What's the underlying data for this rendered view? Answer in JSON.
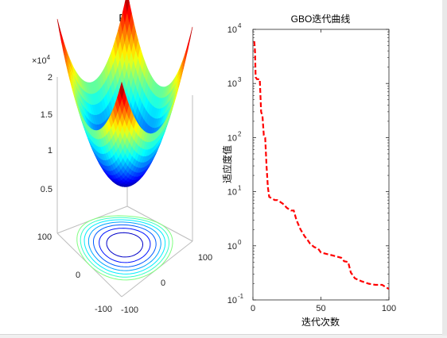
{
  "chart_data": [
    {
      "type": "surface3d",
      "title": "F6",
      "exponent_label": "×10",
      "exponent_power": "4",
      "z_ticks": [
        "0.5",
        "1",
        "1.5",
        "2"
      ],
      "x_ticks": [
        "-100",
        "0",
        "100"
      ],
      "y_ticks": [
        "-100",
        "0",
        "100"
      ],
      "zlim": [
        0,
        20000
      ],
      "xlim": [
        -100,
        100
      ],
      "ylim": [
        -100,
        100
      ],
      "colormap": "jet",
      "contour_projection": true
    },
    {
      "type": "line",
      "title": "GBO迭代曲线",
      "xlabel": "迭代次数",
      "ylabel": "适应度值",
      "xlim": [
        0,
        100
      ],
      "ylim": [
        0.1,
        10000
      ],
      "yscale": "log",
      "x_ticks": [
        "0",
        "50",
        "100"
      ],
      "y_ticks": [
        "10",
        "10",
        "10",
        "10",
        "10",
        "10"
      ],
      "y_tick_exponents": [
        "-1",
        "0",
        "1",
        "2",
        "3",
        "4"
      ],
      "line_color": "#ff0000",
      "line_style": "dashed",
      "series": [
        {
          "x": [
            1,
            1.5,
            2,
            3,
            4,
            5,
            6,
            7,
            8,
            9,
            10,
            11,
            12,
            14,
            16,
            18,
            20,
            22,
            25,
            28,
            30,
            32,
            35,
            38,
            40,
            42,
            45,
            48,
            50,
            55,
            60,
            65,
            67,
            70,
            72,
            75,
            80,
            85,
            90,
            95,
            98,
            100
          ],
          "y": [
            6000,
            4000,
            1300,
            1200,
            1200,
            1200,
            300,
            250,
            110,
            100,
            30,
            12,
            8,
            7.5,
            7,
            7,
            6.5,
            6,
            5,
            4.5,
            4.5,
            3,
            2,
            1.5,
            1.3,
            1.1,
            0.95,
            0.88,
            0.75,
            0.7,
            0.65,
            0.6,
            0.52,
            0.5,
            0.32,
            0.25,
            0.22,
            0.2,
            0.19,
            0.19,
            0.17,
            0.16
          ]
        }
      ]
    }
  ]
}
